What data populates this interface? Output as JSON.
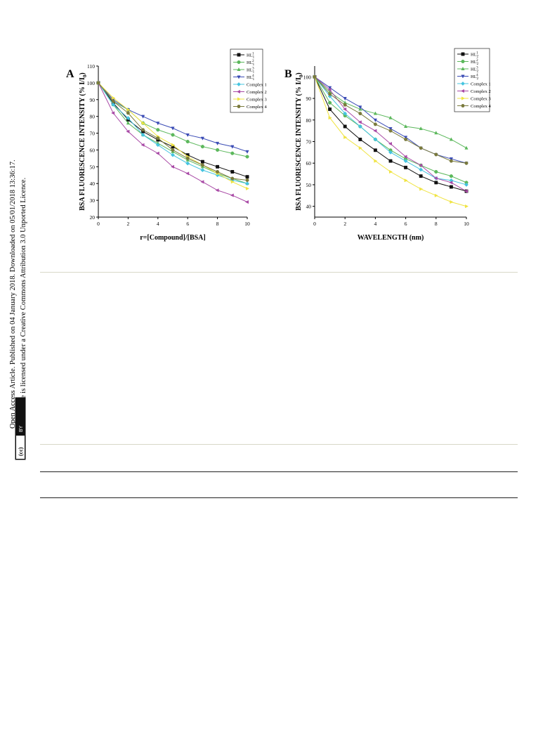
{
  "sidebar": {
    "line1": "Open Access Article. Published on 04 January 2018. Downloaded on 05/01/2018 13:36:17.",
    "line2": "This article is licensed under a Creative Commons Attribution 3.0 Unported Licence.",
    "badge_cc": "(cc)",
    "badge_by": "BY"
  },
  "chart_data": [
    {
      "type": "line",
      "panel_label": "A",
      "title": "",
      "xlabel": "r=[Compound]/[BSA]",
      "ylabel": "BSA FLUORESCENCE INTENSITY (% I/I",
      "ylabel_sub": "0",
      "ylabel_tail": ")",
      "xlim": [
        0,
        10
      ],
      "ylim": [
        20,
        110
      ],
      "xticks": [
        0,
        2,
        4,
        6,
        8,
        10
      ],
      "yticks": [
        20,
        30,
        40,
        50,
        60,
        70,
        80,
        90,
        100,
        110
      ],
      "x": [
        0,
        1,
        2,
        3,
        4,
        5,
        6,
        7,
        8,
        9,
        10
      ],
      "legend_position": "top-right",
      "series": [
        {
          "name": "HL1",
          "label_main": "HL",
          "label_sub": "1",
          "label_sup": "1",
          "color": "#111111",
          "marker": "square",
          "values": [
            100,
            88,
            78,
            71,
            66,
            62,
            57,
            53,
            50,
            47,
            44
          ]
        },
        {
          "name": "HL2",
          "label_main": "HL",
          "label_sub": "1",
          "label_sup": "2",
          "color": "#5cb85c",
          "marker": "circle",
          "values": [
            100,
            89,
            84,
            76,
            72,
            69,
            65,
            62,
            60,
            58,
            56
          ]
        },
        {
          "name": "HL3",
          "label_main": "HL",
          "label_sub": "1",
          "label_sup": "3",
          "color": "#5cb85c",
          "marker": "triangle-up",
          "values": [
            100,
            87,
            76,
            69,
            64,
            59,
            54,
            50,
            46,
            43,
            40
          ]
        },
        {
          "name": "HL4",
          "label_main": "HL",
          "label_sub": "1",
          "label_sup": "4",
          "color": "#3a4bb5",
          "marker": "triangle-down",
          "values": [
            100,
            90,
            84,
            80,
            76,
            73,
            69,
            67,
            64,
            62,
            59
          ]
        },
        {
          "name": "Complex 1",
          "label_main": "Complex 1",
          "color": "#45c4e0",
          "marker": "diamond",
          "values": [
            100,
            87,
            79,
            69,
            63,
            57,
            52,
            48,
            45,
            42,
            40
          ]
        },
        {
          "name": "Complex 2",
          "label_main": "Complex 2",
          "color": "#a94aa6",
          "marker": "triangle-left",
          "values": [
            100,
            82,
            71,
            63,
            58,
            50,
            46,
            41,
            36,
            33,
            29
          ]
        },
        {
          "name": "Complex 3",
          "label_main": "Complex 3",
          "color": "#f0e442",
          "marker": "triangle-right",
          "values": [
            100,
            91,
            84,
            76,
            68,
            63,
            56,
            51,
            46,
            41,
            37
          ]
        },
        {
          "name": "Complex 4",
          "label_main": "Complex 4",
          "color": "#7a7a3c",
          "marker": "hexagon",
          "values": [
            100,
            89,
            82,
            72,
            67,
            60,
            55,
            51,
            47,
            43,
            42
          ]
        }
      ]
    },
    {
      "type": "line",
      "panel_label": "B",
      "title": "",
      "xlabel": "WAVELENGTH (nm)",
      "ylabel": "BSA FLUORESCENCE INTENSITY (% I/I",
      "ylabel_sub": "0",
      "ylabel_tail": ")",
      "xlim": [
        0,
        10
      ],
      "ylim": [
        35,
        105
      ],
      "xticks": [
        0,
        2,
        4,
        6,
        8,
        10
      ],
      "yticks": [
        40,
        50,
        60,
        70,
        80,
        90,
        100
      ],
      "x": [
        0,
        1,
        2,
        3,
        4,
        5,
        6,
        7,
        8,
        9,
        10
      ],
      "legend_position": "top-right",
      "series": [
        {
          "name": "HL1",
          "label_main": "HL",
          "label_sub": "2",
          "label_sup": "1",
          "color": "#111111",
          "marker": "square",
          "values": [
            100,
            85,
            77,
            71,
            66,
            61,
            58,
            54,
            51,
            49,
            47
          ]
        },
        {
          "name": "HL2",
          "label_main": "HL",
          "label_sub": "2",
          "label_sup": "2",
          "color": "#5cb85c",
          "marker": "circle",
          "values": [
            100,
            88,
            82,
            77,
            71,
            66,
            62,
            59,
            56,
            54,
            51
          ]
        },
        {
          "name": "HL3",
          "label_main": "HL",
          "label_sub": "2",
          "label_sup": "3",
          "color": "#5cb85c",
          "marker": "triangle-up",
          "values": [
            100,
            93,
            88,
            85,
            83,
            81,
            77,
            76,
            74,
            71,
            67
          ]
        },
        {
          "name": "HL4",
          "label_main": "HL",
          "label_sub": "2",
          "label_sup": "4",
          "color": "#3a4bb5",
          "marker": "triangle-down",
          "values": [
            100,
            95,
            90,
            86,
            80,
            76,
            72,
            67,
            64,
            62,
            60
          ]
        },
        {
          "name": "Complex 1",
          "label_main": "Complex 1",
          "color": "#45c4e0",
          "marker": "diamond",
          "values": [
            100,
            91,
            83,
            77,
            71,
            65,
            61,
            57,
            53,
            52,
            50
          ]
        },
        {
          "name": "Complex 2",
          "label_main": "Complex 2",
          "color": "#a94aa6",
          "marker": "triangle-left",
          "values": [
            100,
            94,
            85,
            79,
            75,
            69,
            63,
            59,
            53,
            51,
            47
          ]
        },
        {
          "name": "Complex 3",
          "label_main": "Complex 3",
          "color": "#f0e442",
          "marker": "triangle-right",
          "values": [
            100,
            81,
            72,
            67,
            61,
            56,
            52,
            48,
            45,
            42,
            40
          ]
        },
        {
          "name": "Complex 4",
          "label_main": "Complex 4",
          "color": "#7a7a3c",
          "marker": "hexagon",
          "values": [
            100,
            92,
            87,
            83,
            78,
            75,
            71,
            67,
            64,
            61,
            60
          ]
        }
      ]
    }
  ]
}
